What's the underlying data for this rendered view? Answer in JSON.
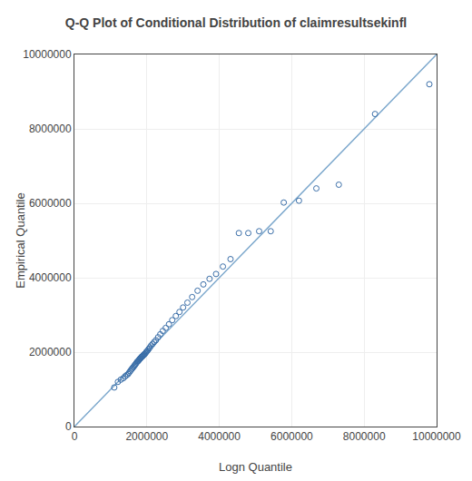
{
  "chart_data": {
    "type": "scatter",
    "title": "Q-Q Plot of Conditional Distribution of claimresultsekinfl",
    "xlabel": "Logn Quantile",
    "ylabel": "Empirical Quantile",
    "xlim": [
      0,
      10000000
    ],
    "ylim": [
      0,
      10000000
    ],
    "xticks": [
      0,
      2000000,
      4000000,
      6000000,
      8000000,
      10000000
    ],
    "yticks": [
      0,
      2000000,
      4000000,
      6000000,
      8000000,
      10000000
    ],
    "grid": true,
    "series": [
      {
        "type": "line",
        "color": "#7ba7cc",
        "line_style": "solid",
        "x": [
          0,
          10000000
        ],
        "values": [
          0,
          10000000
        ]
      },
      {
        "type": "scatter",
        "color": "#3a6ea8",
        "marker": "open circle",
        "x": [
          1100000,
          1200000,
          1280000,
          1350000,
          1400000,
          1440000,
          1480000,
          1510000,
          1540000,
          1570000,
          1595000,
          1620000,
          1645000,
          1665000,
          1685000,
          1705000,
          1725000,
          1745000,
          1760000,
          1775000,
          1790000,
          1805000,
          1820000,
          1835000,
          1850000,
          1865000,
          1880000,
          1895000,
          1910000,
          1925000,
          1940000,
          1960000,
          1980000,
          2000000,
          2025000,
          2055000,
          2085000,
          2120000,
          2160000,
          2200000,
          2250000,
          2310000,
          2370000,
          2440000,
          2520000,
          2610000,
          2700000,
          2800000,
          2900000,
          3000000,
          3120000,
          3250000,
          3400000,
          3560000,
          3730000,
          3910000,
          4100000,
          4310000,
          4540000,
          4800000,
          5100000,
          5420000,
          5780000,
          6200000,
          6680000,
          7300000,
          8300000,
          9800000
        ],
        "values": [
          1050000,
          1200000,
          1260000,
          1300000,
          1350000,
          1380000,
          1410000,
          1450000,
          1490000,
          1530000,
          1560000,
          1590000,
          1620000,
          1650000,
          1670000,
          1700000,
          1730000,
          1750000,
          1760000,
          1780000,
          1800000,
          1820000,
          1830000,
          1850000,
          1870000,
          1880000,
          1890000,
          1910000,
          1920000,
          1940000,
          1950000,
          1970000,
          2000000,
          2020000,
          2050000,
          2090000,
          2130000,
          2180000,
          2220000,
          2270000,
          2320000,
          2400000,
          2480000,
          2570000,
          2650000,
          2750000,
          2860000,
          2970000,
          3080000,
          3200000,
          3330000,
          3480000,
          3650000,
          3820000,
          3970000,
          4100000,
          4300000,
          4500000,
          5200000,
          5200000,
          5250000,
          5250000,
          6020000,
          6070000,
          6400000,
          6500000,
          8400000,
          9200000
        ]
      }
    ]
  }
}
